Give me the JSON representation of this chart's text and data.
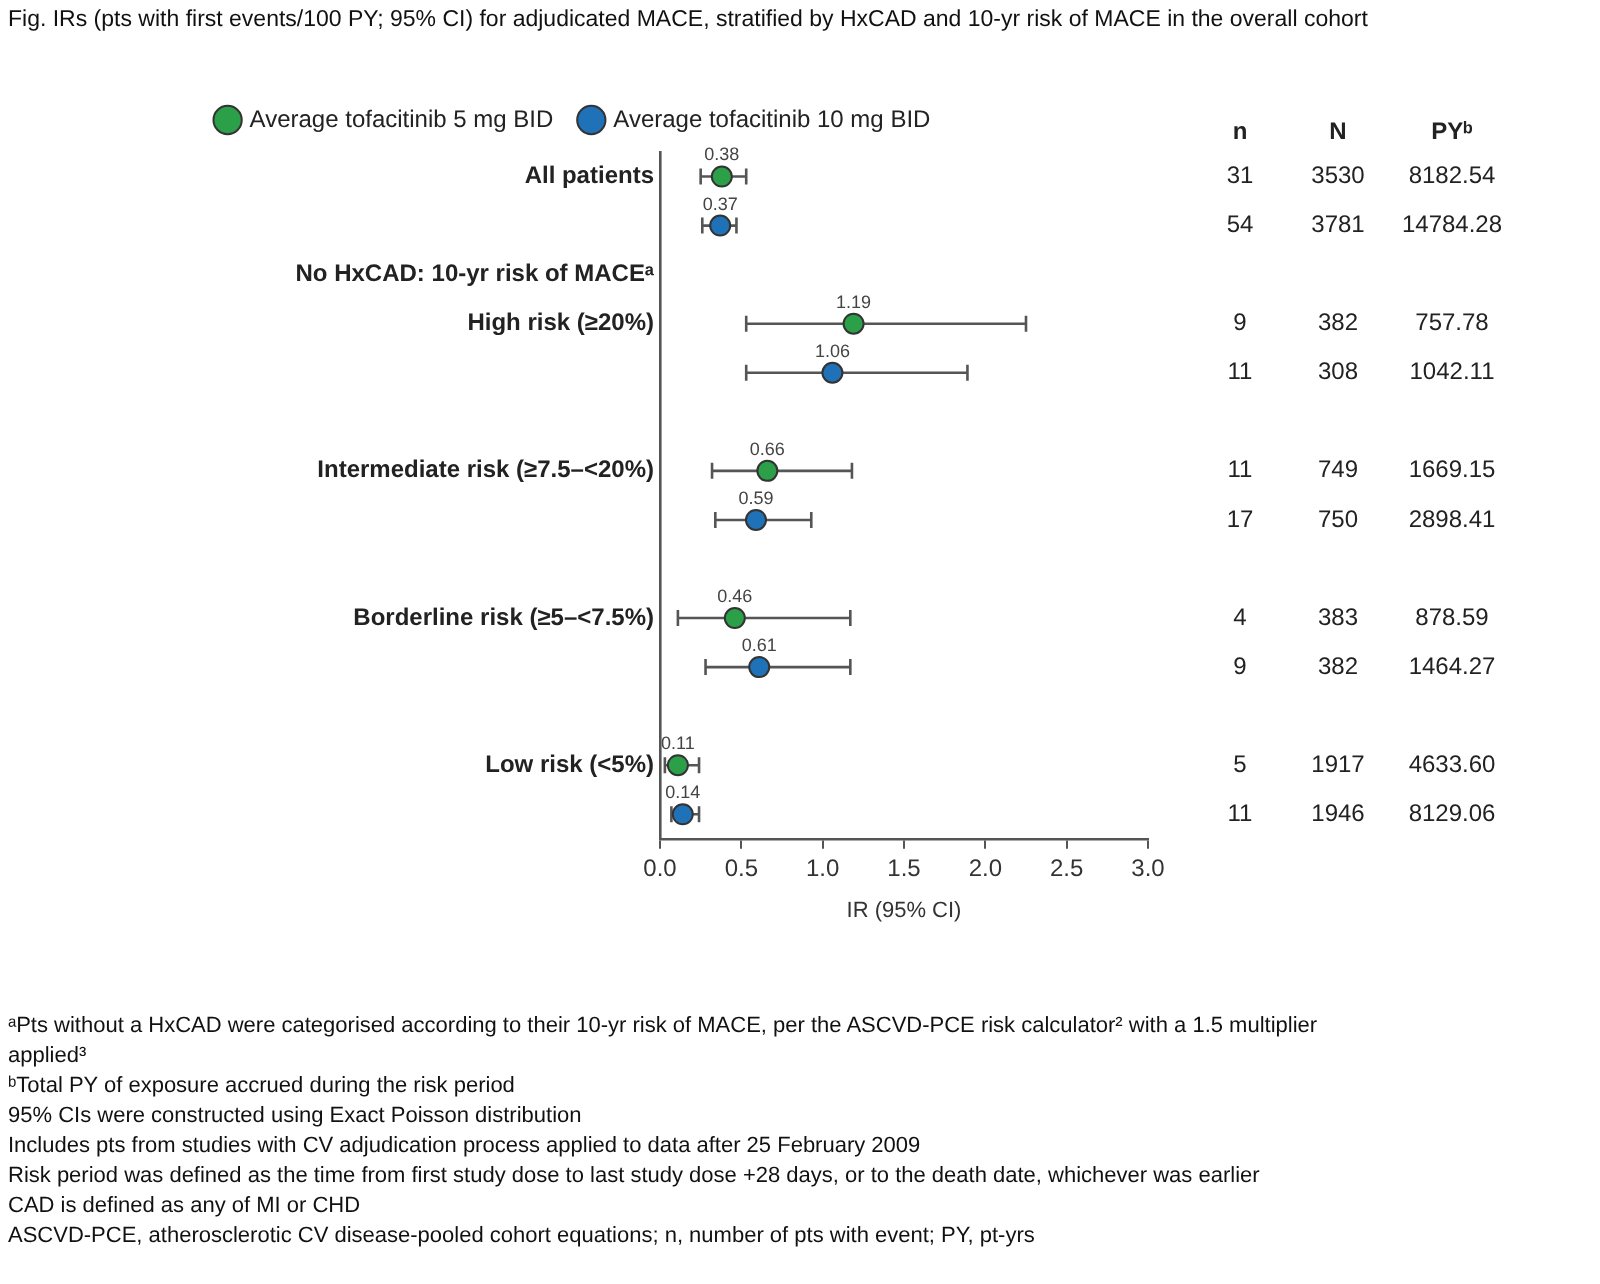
{
  "chart_data": {
    "type": "scatter",
    "orientation": "horizontal",
    "title": "Fig. IRs (pts with first events/100 PY; 95% CI) for adjudicated MACE, stratified by HxCAD and 10-yr risk of MACE in the overall cohort",
    "categories": [
      "All patients",
      null,
      "No HxCAD: 10-yr risk of MACEᵃ",
      "High risk (≥20%)",
      null,
      null,
      "Intermediate risk (≥7.5–<20%)",
      null,
      null,
      "Borderline risk (≥5–<7.5%)",
      null,
      null,
      "Low risk (<5%)",
      null
    ],
    "series": [
      {
        "name": "Average tofacitinib 5 mg BID",
        "color": "#2ca048",
        "values": [
          0.38,
          null,
          null,
          1.19,
          null,
          null,
          0.66,
          null,
          null,
          0.46,
          null,
          null,
          0.11,
          null
        ],
        "errors": [
          [
            0.25,
            0.53
          ],
          null,
          null,
          [
            0.53,
            2.25
          ],
          null,
          null,
          [
            0.32,
            1.18
          ],
          null,
          null,
          [
            0.11,
            1.17
          ],
          null,
          null,
          [
            0.03,
            0.24
          ],
          null
        ]
      },
      {
        "name": "Average tofacitinib 10 mg BID",
        "color": "#1f72b8",
        "values": [
          null,
          0.37,
          null,
          null,
          1.06,
          null,
          null,
          0.59,
          null,
          null,
          0.61,
          null,
          null,
          0.14
        ],
        "errors": [
          null,
          [
            0.26,
            0.47
          ],
          null,
          null,
          [
            0.53,
            1.89
          ],
          null,
          null,
          [
            0.34,
            0.93
          ],
          null,
          null,
          [
            0.28,
            1.17
          ],
          null,
          null,
          [
            0.07,
            0.24
          ]
        ]
      }
    ],
    "xlabel": "IR (95% CI)",
    "xlim": [
      0,
      3
    ],
    "xticks": [
      {
        "value": 0,
        "label": "0.0"
      },
      {
        "value": 0.5,
        "label": "0.5"
      },
      {
        "value": 1,
        "label": "1.0"
      },
      {
        "value": 1.5,
        "label": "1.5"
      },
      {
        "value": 2,
        "label": "2.0"
      },
      {
        "value": 2.5,
        "label": "2.5"
      },
      {
        "value": 3,
        "label": "3.0"
      }
    ],
    "data_labels": true,
    "marker": "circle",
    "legend": "top",
    "grid": false,
    "annotations": [
      "n",
      "N",
      "PYᵇ",
      "31",
      "3530",
      "8182.54",
      "54",
      "3781",
      "14784.28",
      "9",
      "382",
      "757.78",
      "11",
      "308",
      "1042.11",
      "11",
      "749",
      "1669.15",
      "17",
      "750",
      "2898.41",
      "4",
      "383",
      "878.59",
      "9",
      "382",
      "1464.27",
      "5",
      "1917",
      "4633.60",
      "11",
      "1946",
      "8129.06",
      "ᵃPts without a HxCAD were categorised according to their 10-yr risk of MACE, per the ASCVD-PCE risk calculator² with a 1.5 multiplier applied³",
      "ᵇTotal PY of exposure accrued during the risk period",
      "95% CIs were constructed using Exact Poisson distribution",
      "Includes pts from studies with CV adjudication process applied to data after 25 February 2009",
      "Risk period was defined as the time from first study dose to last study dose +28 days, or to the death date, whichever was earlier",
      "CAD is defined as any of MI or CHD",
      "ASCVD-PCE, atherosclerotic CV disease-pooled cohort equations; n, number of pts with event; PY, pt-yrs"
    ]
  }
}
